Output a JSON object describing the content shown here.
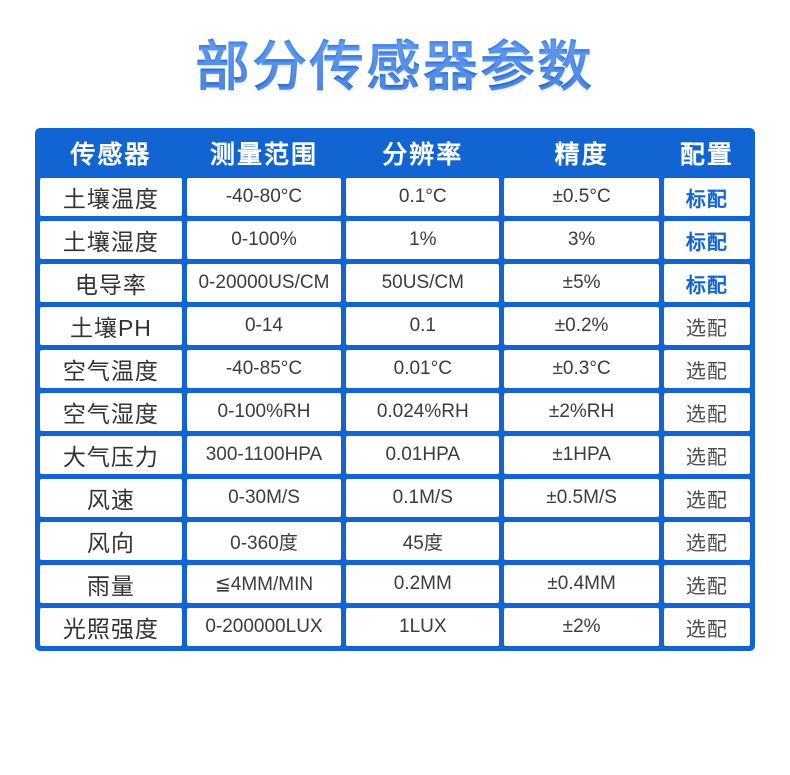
{
  "title": "部分传感器参数",
  "colors": {
    "table_blue": "#1164d2",
    "title_gradient_top": "#4a8cf2",
    "title_gradient_bottom": "#155ccd",
    "standard_config_text": "#1164d2",
    "optional_config_text": "#4d4d4d",
    "cell_text": "#3c3c3c",
    "header_text": "#ffffff"
  },
  "table": {
    "headers": [
      "传感器",
      "测量范围",
      "分辨率",
      "精度",
      "配置"
    ],
    "standard_label": "标配",
    "optional_label": "选配",
    "rows": [
      {
        "sensor": "土壤温度",
        "range": "-40-80°C",
        "resolution": "0.1°C",
        "accuracy": "±0.5°C",
        "config": "标配"
      },
      {
        "sensor": "土壤湿度",
        "range": "0-100%",
        "resolution": "1%",
        "accuracy": "3%",
        "config": "标配"
      },
      {
        "sensor": "电导率",
        "range": "0-20000US/CM",
        "resolution": "50US/CM",
        "accuracy": "±5%",
        "config": "标配"
      },
      {
        "sensor": "土壤PH",
        "range": "0-14",
        "resolution": "0.1",
        "accuracy": "±0.2%",
        "config": "选配"
      },
      {
        "sensor": "空气温度",
        "range": "-40-85°C",
        "resolution": "0.01°C",
        "accuracy": "±0.3°C",
        "config": "选配"
      },
      {
        "sensor": "空气湿度",
        "range": "0-100%RH",
        "resolution": "0.024%RH",
        "accuracy": "±2%RH",
        "config": "选配"
      },
      {
        "sensor": "大气压力",
        "range": "300-1100HPA",
        "resolution": "0.01HPA",
        "accuracy": "±1HPA",
        "config": "选配"
      },
      {
        "sensor": "风速",
        "range": "0-30M/S",
        "resolution": "0.1M/S",
        "accuracy": "±0.5M/S",
        "config": "选配"
      },
      {
        "sensor": "风向",
        "range": "0-360度",
        "resolution": "45度",
        "accuracy": "",
        "config": "选配"
      },
      {
        "sensor": "雨量",
        "range": "≦4MM/MIN",
        "resolution": "0.2MM",
        "accuracy": "±0.4MM",
        "config": "选配"
      },
      {
        "sensor": "光照强度",
        "range": "0-200000LUX",
        "resolution": "1LUX",
        "accuracy": "±2%",
        "config": "选配"
      }
    ]
  }
}
